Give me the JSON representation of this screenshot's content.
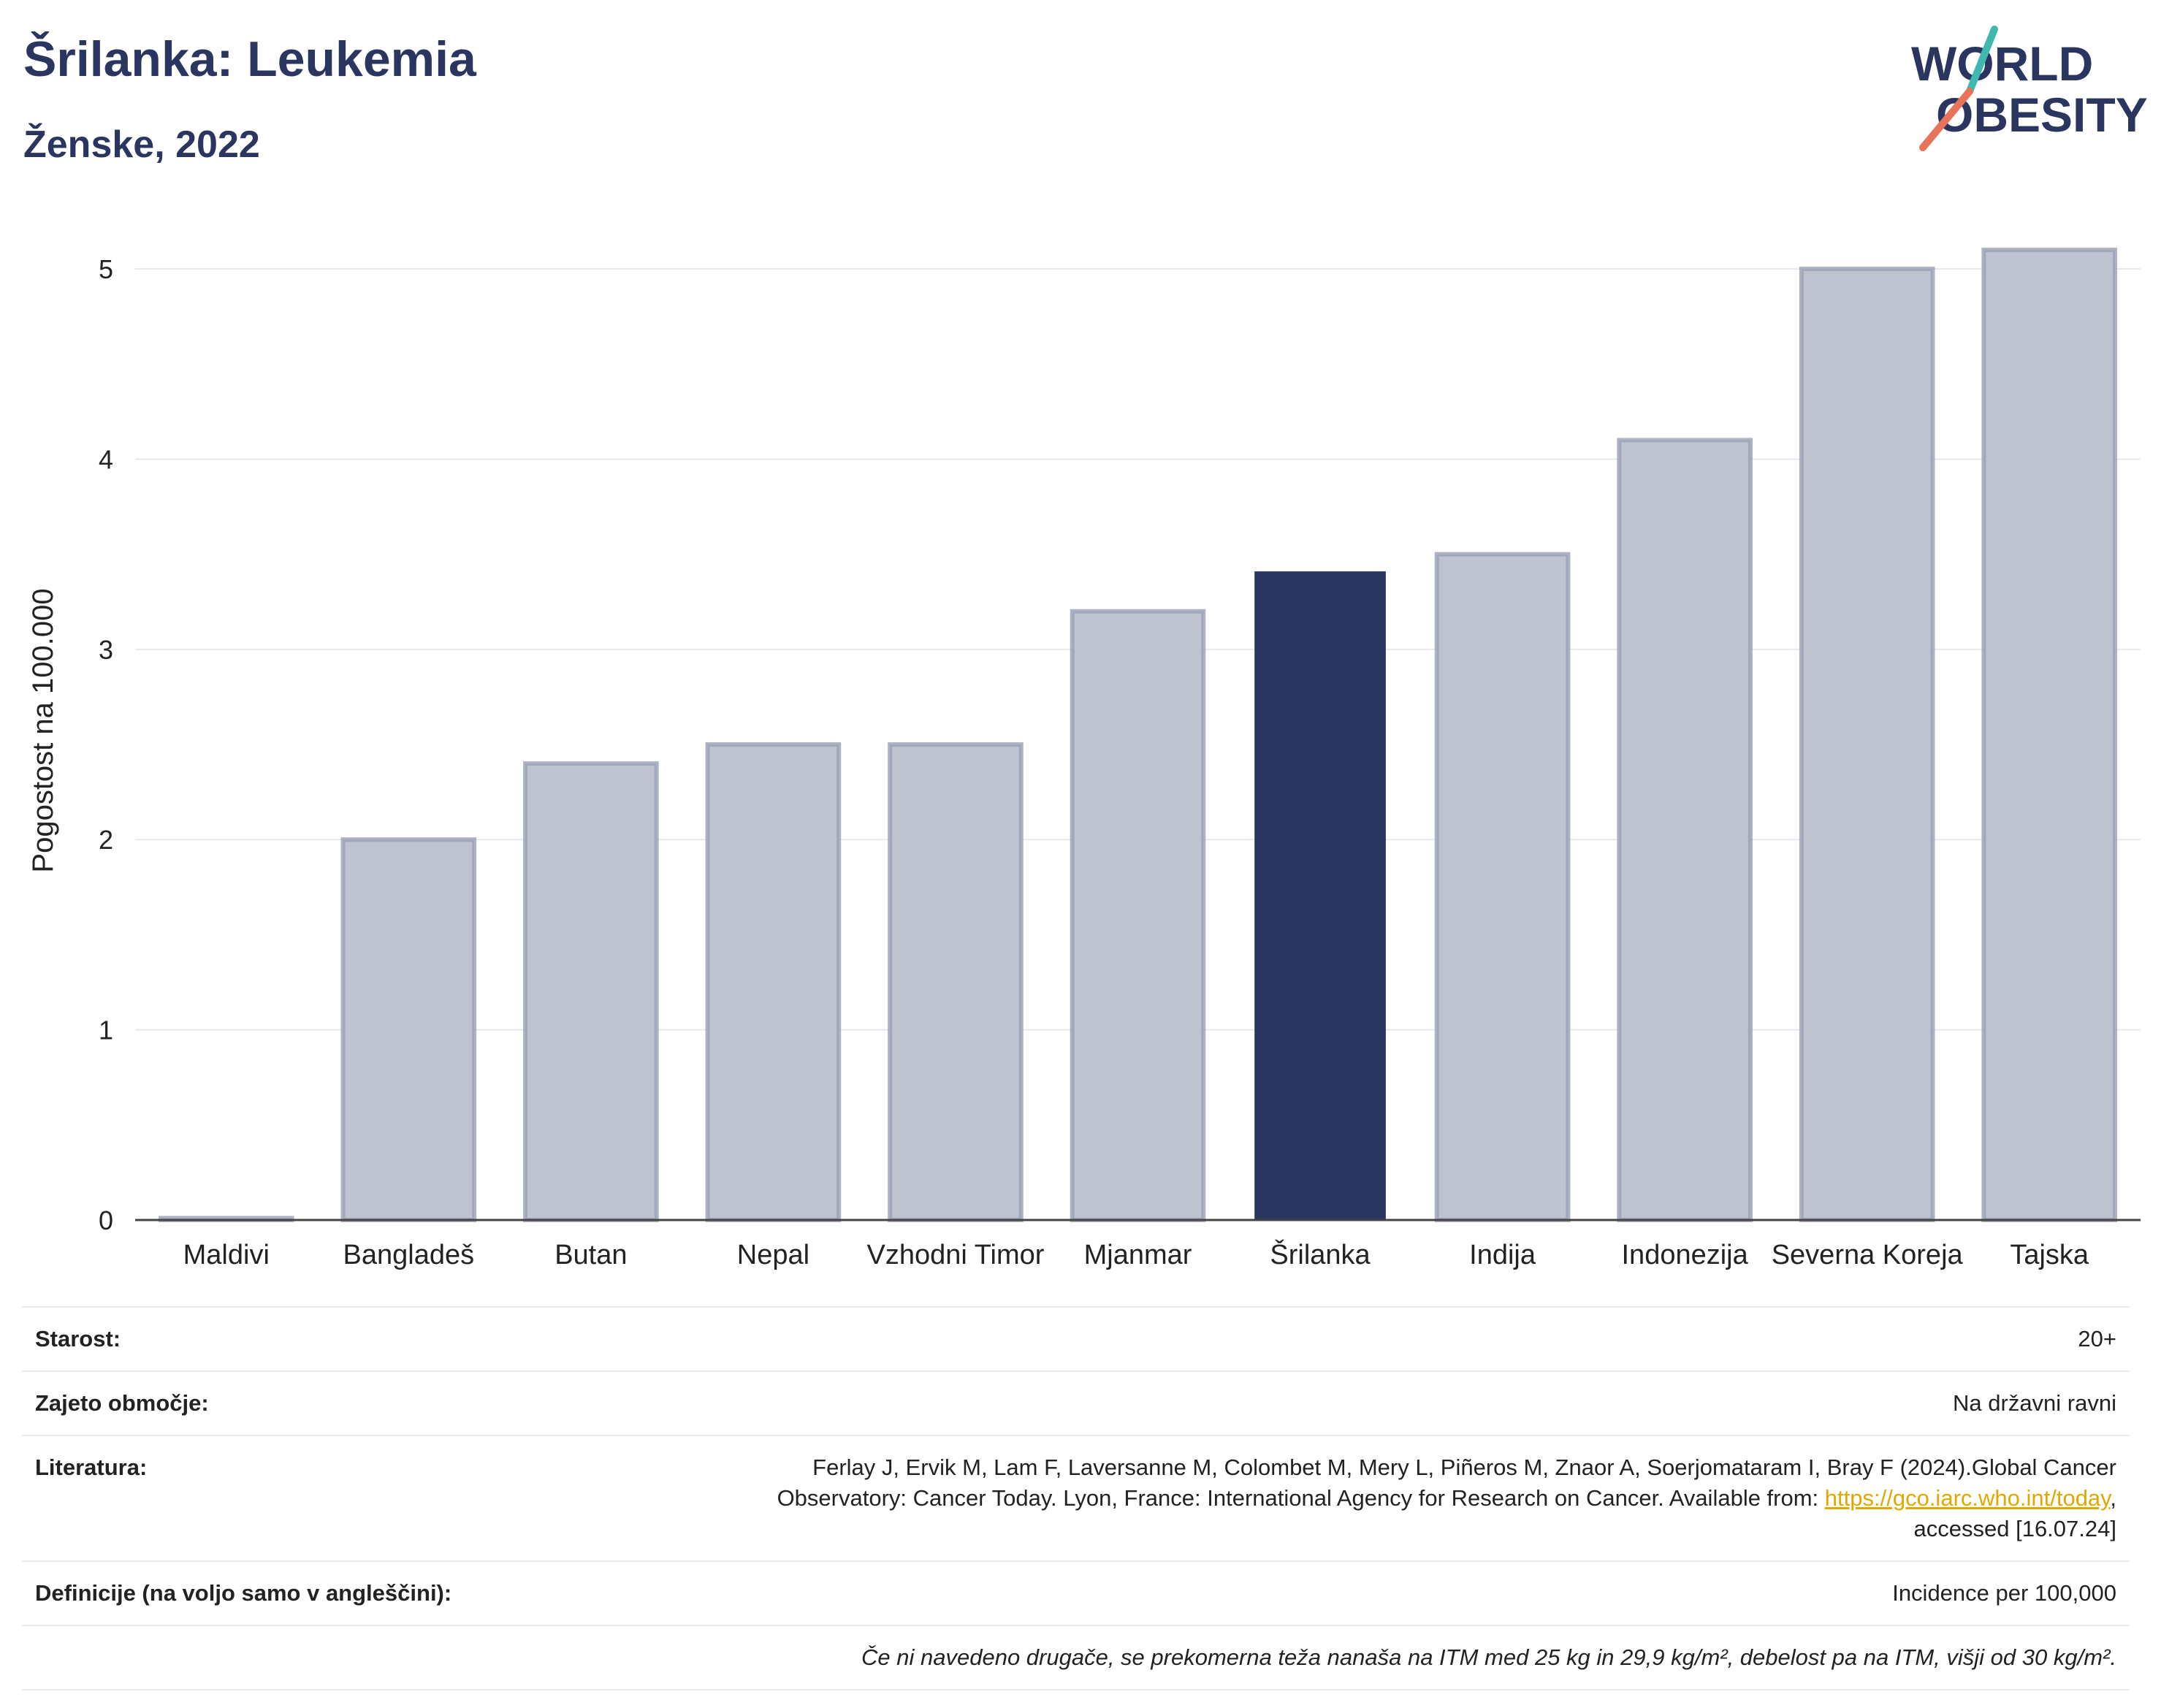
{
  "header": {
    "title": "Šrilanka: Leukemia",
    "subtitle": "Ženske, 2022"
  },
  "logo": {
    "line1": "WORLD",
    "line2": "OBESITY",
    "colors": {
      "text": "#2a3560",
      "slash_teal": "#3fb8b0",
      "slash_coral": "#e8735a"
    }
  },
  "chart_data": {
    "type": "bar",
    "categories": [
      "Maldivi",
      "Bangladeš",
      "Butan",
      "Nepal",
      "Vzhodni Timor",
      "Mjanmar",
      "Šrilanka",
      "Indija",
      "Indonezija",
      "Severna Koreja",
      "Tajska"
    ],
    "values": [
      0.01,
      2.0,
      2.4,
      2.5,
      2.5,
      3.2,
      3.41,
      3.5,
      4.1,
      5.0,
      5.1
    ],
    "highlight": "Šrilanka",
    "ylabel": "Pogostost na 100.000",
    "xlabel": "",
    "ylim": [
      0,
      5.3
    ],
    "yticks": [
      0,
      1,
      2,
      3,
      4,
      5
    ],
    "grid": true,
    "colors": {
      "bar": "#bfc3d0",
      "bar_edge": "#9aa0b5",
      "highlight": "#2a3560",
      "grid": "#e6e8ee",
      "axis": "#444444"
    }
  },
  "info": {
    "rows": [
      {
        "label": "Starost:",
        "value": "20+"
      },
      {
        "label": "Zajeto območje:",
        "value": "Na državni ravni"
      },
      {
        "label": "Literatura:",
        "value_line1": "Ferlay J, Ervik M, Lam F, Laversanne M, Colombet M, Mery L, Piñeros M, Znaor A, Soerjomataram I, Bray F (2024).Global Cancer",
        "value_line2_before": "Observatory: Cancer Today. Lyon, France: International Agency for Research on Cancer. Available from: ",
        "link": "https://gco.iarc.who.int/today",
        "value_line2_after": ",",
        "value_line3": "accessed [16.07.24]"
      },
      {
        "label": "Definicije (na voljo samo v angleščini):",
        "value": "Incidence per 100,000"
      }
    ],
    "note": "Če ni navedeno drugače, se prekomerna teža nanaša na ITM med 25 kg in 29,9 kg/m², debelost pa na ITM, višji od 30 kg/m²."
  }
}
